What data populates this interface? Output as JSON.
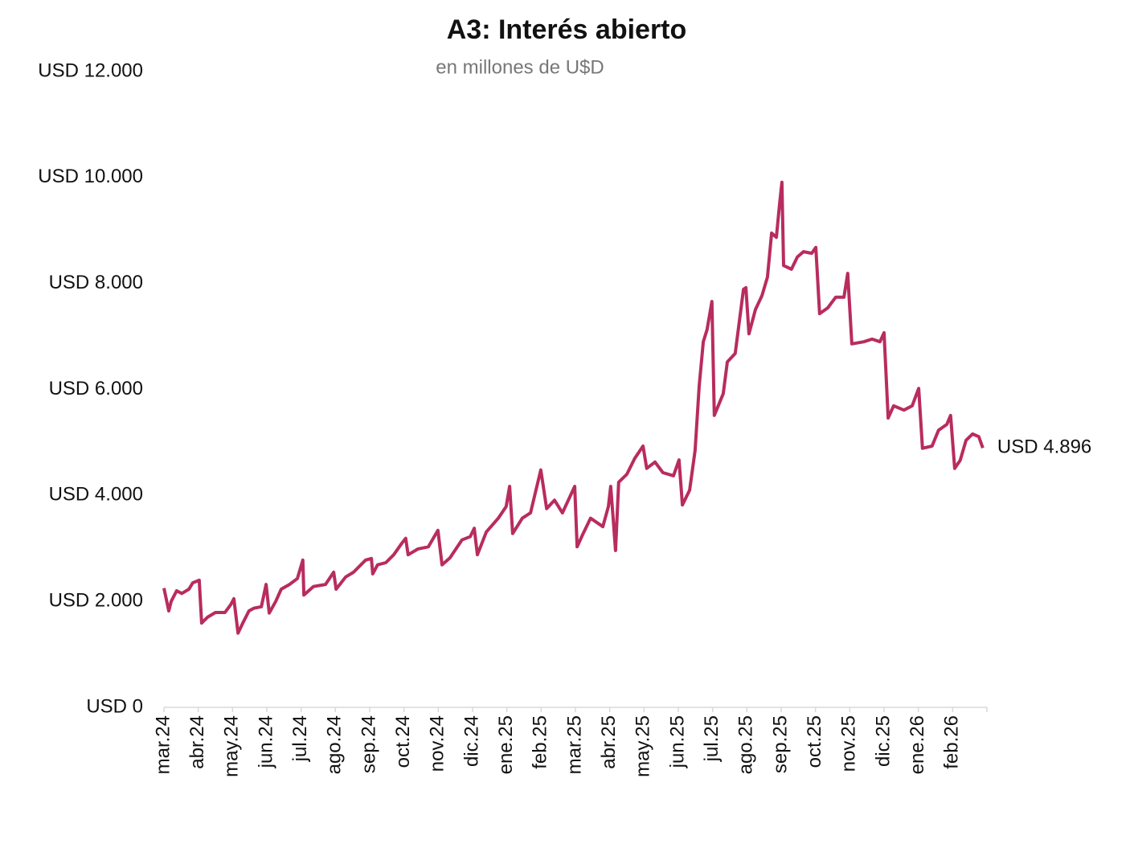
{
  "chart_data": {
    "type": "line",
    "title": "A3: Interés abierto",
    "subtitle": "en millones de U$D",
    "x": [
      0.0,
      0.14,
      0.21,
      0.37,
      0.52,
      0.73,
      0.84,
      1.03,
      1.1,
      1.27,
      1.5,
      1.78,
      1.95,
      2.04,
      2.16,
      2.3,
      2.48,
      2.62,
      2.84,
      2.98,
      3.07,
      3.26,
      3.42,
      3.66,
      3.89,
      4.05,
      4.08,
      4.36,
      4.71,
      4.95,
      5.02,
      5.3,
      5.53,
      5.88,
      6.05,
      6.09,
      6.23,
      6.47,
      6.7,
      6.94,
      7.05,
      7.12,
      7.41,
      7.71,
      7.99,
      8.11,
      8.34,
      8.69,
      8.93,
      9.05,
      9.14,
      9.4,
      9.75,
      9.98,
      10.08,
      10.17,
      10.45,
      10.69,
      10.99,
      11.16,
      11.39,
      11.62,
      11.98,
      12.05,
      12.21,
      12.44,
      12.8,
      12.96,
      13.03,
      13.1,
      13.17,
      13.26,
      13.5,
      13.73,
      13.97,
      14.08,
      14.32,
      14.55,
      14.86,
      15.02,
      15.12,
      15.33,
      15.49,
      15.61,
      15.73,
      15.84,
      15.98,
      16.05,
      16.31,
      16.43,
      16.66,
      16.9,
      16.97,
      17.06,
      17.25,
      17.44,
      17.6,
      17.72,
      17.86,
      17.95,
      18.02,
      18.07,
      18.3,
      18.47,
      18.65,
      18.89,
      19.01,
      19.12,
      19.36,
      19.59,
      19.83,
      19.94,
      20.06,
      20.41,
      20.65,
      20.88,
      21.0,
      21.12,
      21.28,
      21.58,
      21.82,
      22.01,
      22.12,
      22.4,
      22.59,
      22.83,
      22.94,
      23.06,
      23.22,
      23.39,
      23.58,
      23.76,
      23.88
    ],
    "values": [
      2250,
      1820,
      2000,
      2200,
      2150,
      2230,
      2350,
      2400,
      1590,
      1700,
      1790,
      1790,
      1940,
      2050,
      1400,
      1590,
      1820,
      1870,
      1900,
      2320,
      1780,
      2000,
      2230,
      2320,
      2430,
      2780,
      2120,
      2280,
      2320,
      2550,
      2230,
      2460,
      2550,
      2780,
      2810,
      2520,
      2690,
      2730,
      2880,
      3100,
      3190,
      2880,
      2990,
      3030,
      3340,
      2690,
      2820,
      3160,
      3220,
      3380,
      2880,
      3310,
      3570,
      3790,
      4170,
      3280,
      3570,
      3670,
      4480,
      3750,
      3910,
      3670,
      4170,
      3030,
      3260,
      3570,
      3410,
      3790,
      4170,
      3570,
      2960,
      4250,
      4400,
      4700,
      4930,
      4510,
      4630,
      4430,
      4370,
      4670,
      3820,
      4100,
      4850,
      6070,
      6900,
      7130,
      7660,
      5510,
      5920,
      6520,
      6680,
      7890,
      7920,
      7050,
      7510,
      7770,
      8120,
      8950,
      8870,
      9480,
      9910,
      8340,
      8270,
      8500,
      8600,
      8570,
      8680,
      7430,
      7540,
      7740,
      7740,
      8190,
      6860,
      6900,
      6950,
      6900,
      7070,
      5460,
      5690,
      5610,
      5690,
      6020,
      4890,
      4930,
      5230,
      5340,
      5510,
      4510,
      4660,
      5040,
      5160,
      5110,
      4896
    ],
    "end_label": "USD 4.896",
    "color": "#b82c5e",
    "xlim": [
      0,
      24
    ],
    "xticks": [
      {
        "value": 0,
        "label": "mar.24"
      },
      {
        "value": 1,
        "label": "abr.24"
      },
      {
        "value": 2,
        "label": "may.24"
      },
      {
        "value": 3,
        "label": "jun.24"
      },
      {
        "value": 4,
        "label": "jul.24"
      },
      {
        "value": 5,
        "label": "ago.24"
      },
      {
        "value": 6,
        "label": "sep.24"
      },
      {
        "value": 7,
        "label": "oct.24"
      },
      {
        "value": 8,
        "label": "nov.24"
      },
      {
        "value": 9,
        "label": "dic.24"
      },
      {
        "value": 10,
        "label": "ene.25"
      },
      {
        "value": 11,
        "label": "feb.25"
      },
      {
        "value": 12,
        "label": "mar.25"
      },
      {
        "value": 13,
        "label": "abr.25"
      },
      {
        "value": 14,
        "label": "may.25"
      },
      {
        "value": 15,
        "label": "jun.25"
      },
      {
        "value": 16,
        "label": "jul.25"
      },
      {
        "value": 17,
        "label": "ago.25"
      },
      {
        "value": 18,
        "label": "sep.25"
      },
      {
        "value": 19,
        "label": "oct.25"
      },
      {
        "value": 20,
        "label": "nov.25"
      },
      {
        "value": 21,
        "label": "dic.25"
      },
      {
        "value": 22,
        "label": "ene.26"
      },
      {
        "value": 23,
        "label": "feb.26"
      }
    ],
    "ylim": [
      0,
      12000
    ],
    "yticks": [
      {
        "value": 0,
        "label": "USD 0"
      },
      {
        "value": 2000,
        "label": "USD 2.000"
      },
      {
        "value": 4000,
        "label": "USD 4.000"
      },
      {
        "value": 6000,
        "label": "USD 6.000"
      },
      {
        "value": 8000,
        "label": "USD 8.000"
      },
      {
        "value": 10000,
        "label": "USD 10.000"
      },
      {
        "value": 12000,
        "label": "USD 12.000"
      }
    ],
    "grid": false
  }
}
